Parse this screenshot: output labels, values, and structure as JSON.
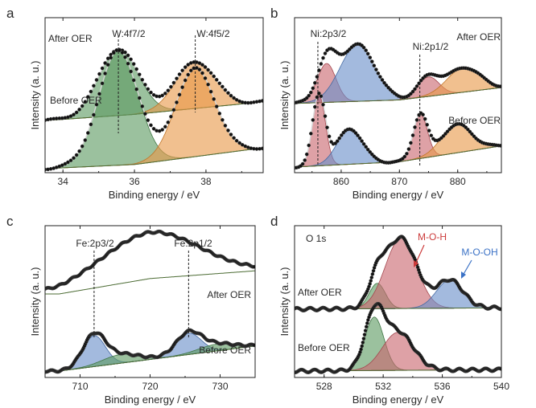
{
  "chart_data": [
    {
      "type": "line",
      "panel": "a",
      "xlabel": "Binding energy / eV",
      "ylabel": "Intensity (a. u.)",
      "xlim": [
        33.5,
        39.6
      ],
      "xticks": [
        34,
        36,
        38
      ],
      "peak_labels": [
        {
          "text": "W:4f7/2",
          "x": 35.5
        },
        {
          "text": "W:4f5/2",
          "x": 37.7
        }
      ],
      "series": [
        {
          "name": "After OER",
          "background": [
            [
              33.5,
              2.3
            ],
            [
              36.0,
              2.6
            ],
            [
              39.6,
              3.2
            ]
          ],
          "components": [
            {
              "center": 35.55,
              "height": 3.2,
              "width": 0.55,
              "color": "#5e9b63"
            },
            {
              "center": 37.7,
              "height": 2.25,
              "width": 0.55,
              "color": "#e9994b"
            }
          ]
        },
        {
          "name": "Before OER",
          "background": [
            [
              33.5,
              0.0
            ],
            [
              36.0,
              0.2
            ],
            [
              39.6,
              1.0
            ]
          ],
          "components": [
            {
              "center": 35.55,
              "height": 5.5,
              "width": 0.55,
              "color": "#5e9b63"
            },
            {
              "center": 37.7,
              "height": 4.2,
              "width": 0.55,
              "color": "#e9994b"
            }
          ]
        }
      ]
    },
    {
      "type": "line",
      "panel": "b",
      "xlabel": "Binding energy / eV",
      "ylabel": "Intensity (a. u.)",
      "xlim": [
        852,
        887.5
      ],
      "xticks": [
        860,
        870,
        880
      ],
      "peak_labels": [
        {
          "text": "Ni:2p3/2",
          "x": 856.0
        },
        {
          "text": "Ni:2p1/2",
          "x": 873.5
        }
      ],
      "series": [
        {
          "name": "After OER",
          "background": [
            [
              852,
              3.6
            ],
            [
              870,
              3.8
            ],
            [
              887.5,
              4.5
            ]
          ],
          "components": [
            {
              "center": 857.5,
              "height": 2.2,
              "width": 1.6,
              "color": "#c9686f"
            },
            {
              "center": 862.8,
              "height": 3.2,
              "width": 3.0,
              "color": "#6a8fc9"
            },
            {
              "center": 875.0,
              "height": 1.1,
              "width": 1.8,
              "color": "#c9686f"
            },
            {
              "center": 881.0,
              "height": 1.4,
              "width": 2.8,
              "color": "#e9994b"
            }
          ]
        },
        {
          "name": "Before OER",
          "background": [
            [
              852,
              0.0
            ],
            [
              870,
              0.3
            ],
            [
              887.5,
              1.2
            ]
          ],
          "components": [
            {
              "center": 856.2,
              "height": 4.0,
              "width": 1.1,
              "color": "#c9686f"
            },
            {
              "center": 861.5,
              "height": 2.0,
              "width": 2.2,
              "color": "#6a8fc9"
            },
            {
              "center": 873.6,
              "height": 2.5,
              "width": 1.2,
              "color": "#c9686f"
            },
            {
              "center": 879.8,
              "height": 1.6,
              "width": 2.6,
              "color": "#e9994b"
            }
          ]
        }
      ]
    },
    {
      "type": "line",
      "panel": "c",
      "xlabel": "Binding energy / eV",
      "ylabel": "Intensity (a. u.)",
      "xlim": [
        705,
        735
      ],
      "xticks": [
        710,
        720,
        730
      ],
      "peak_labels": [
        {
          "text": "Fe:2p3/2",
          "x": 712.0
        },
        {
          "text": "Fe:2p1/2",
          "x": 725.5
        }
      ],
      "series": [
        {
          "name": "After OER",
          "background": [
            [
              707,
              4.0
            ],
            [
              720,
              4.8
            ],
            [
              735,
              5.2
            ]
          ],
          "components": [
            {
              "center": 720.0,
              "height": 2.4,
              "width": 7.0,
              "color": "none"
            }
          ]
        },
        {
          "name": "Before OER",
          "background": [
            [
              707,
              0.0
            ],
            [
              735,
              1.3
            ]
          ],
          "components": [
            {
              "center": 712.0,
              "height": 1.6,
              "width": 1.6,
              "color": "#6a8fc9"
            },
            {
              "center": 715.8,
              "height": 0.45,
              "width": 2.6,
              "color": "#5e9b63"
            },
            {
              "center": 725.5,
              "height": 1.1,
              "width": 1.8,
              "color": "#6a8fc9"
            },
            {
              "center": 729.5,
              "height": 0.35,
              "width": 2.6,
              "color": "#5e9b63"
            }
          ]
        }
      ]
    },
    {
      "type": "line",
      "panel": "d",
      "xlabel": "Binding energy / eV",
      "ylabel": "Intensity (a. u.)",
      "title": "O 1s",
      "xlim": [
        526,
        540
      ],
      "xticks": [
        528,
        532,
        536,
        540
      ],
      "peak_labels": [
        {
          "text": "M-O-H",
          "x": 533.0
        },
        {
          "text": "M-O-OH",
          "x": 536.5
        }
      ],
      "series": [
        {
          "name": "After OER",
          "background": [
            [
              526,
              2.2
            ],
            [
              540,
              2.25
            ]
          ],
          "components": [
            {
              "center": 531.6,
              "height": 0.9,
              "width": 0.55,
              "color": "#5e9b63"
            },
            {
              "center": 533.2,
              "height": 2.5,
              "width": 1.05,
              "color": "#c9686f"
            },
            {
              "center": 536.5,
              "height": 1.0,
              "width": 0.9,
              "color": "#6a8fc9"
            }
          ]
        },
        {
          "name": "Before OER",
          "background": [
            [
              526,
              0.0
            ],
            [
              540,
              0.05
            ]
          ],
          "components": [
            {
              "center": 531.4,
              "height": 1.9,
              "width": 0.65,
              "color": "#5e9b63"
            },
            {
              "center": 533.0,
              "height": 1.35,
              "width": 1.05,
              "color": "#c9686f"
            }
          ]
        }
      ]
    }
  ]
}
